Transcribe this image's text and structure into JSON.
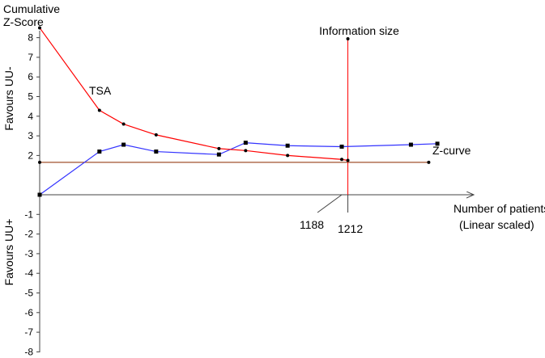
{
  "chart_data": {
    "type": "line",
    "y_title_line1": "Cumulative",
    "y_title_line2": "Z-Score",
    "favours_top": "Favours UU-",
    "favours_bottom": "Favours UU+",
    "xlabel_line1": "Number of patients",
    "xlabel_line2": "(Linear scaled)",
    "ylim": [
      -8,
      8.5
    ],
    "xlim": [
      0,
      1512
    ],
    "yticks": [
      8,
      7,
      6,
      5,
      4,
      3,
      2,
      -1,
      -2,
      -3,
      -4,
      -5,
      -6,
      -7,
      -8
    ],
    "information_size_label": "Information size",
    "information_size_value": 1212,
    "information_size_text": "1212",
    "patients_reached": 1188,
    "patients_reached_text": "1188",
    "conventional_boundary_z": 1.65,
    "tsa_label": "TSA",
    "zcurve_label": "Z-curve",
    "series": [
      {
        "name": "Z-curve",
        "color": "#3333ff",
        "points": [
          [
            0,
            0
          ],
          [
            235,
            2.2
          ],
          [
            330,
            2.55
          ],
          [
            458,
            2.2
          ],
          [
            705,
            2.05
          ],
          [
            810,
            2.65
          ],
          [
            975,
            2.5
          ],
          [
            1188,
            2.45
          ],
          [
            1460,
            2.55
          ],
          [
            1564,
            2.6
          ]
        ]
      },
      {
        "name": "TSA",
        "color": "#ff0000",
        "points": [
          [
            0,
            8.5
          ],
          [
            235,
            4.3
          ],
          [
            330,
            3.6
          ],
          [
            458,
            3.05
          ],
          [
            705,
            2.35
          ],
          [
            810,
            2.25
          ],
          [
            975,
            2.0
          ],
          [
            1188,
            1.8
          ],
          [
            1212,
            1.75
          ]
        ]
      }
    ]
  }
}
